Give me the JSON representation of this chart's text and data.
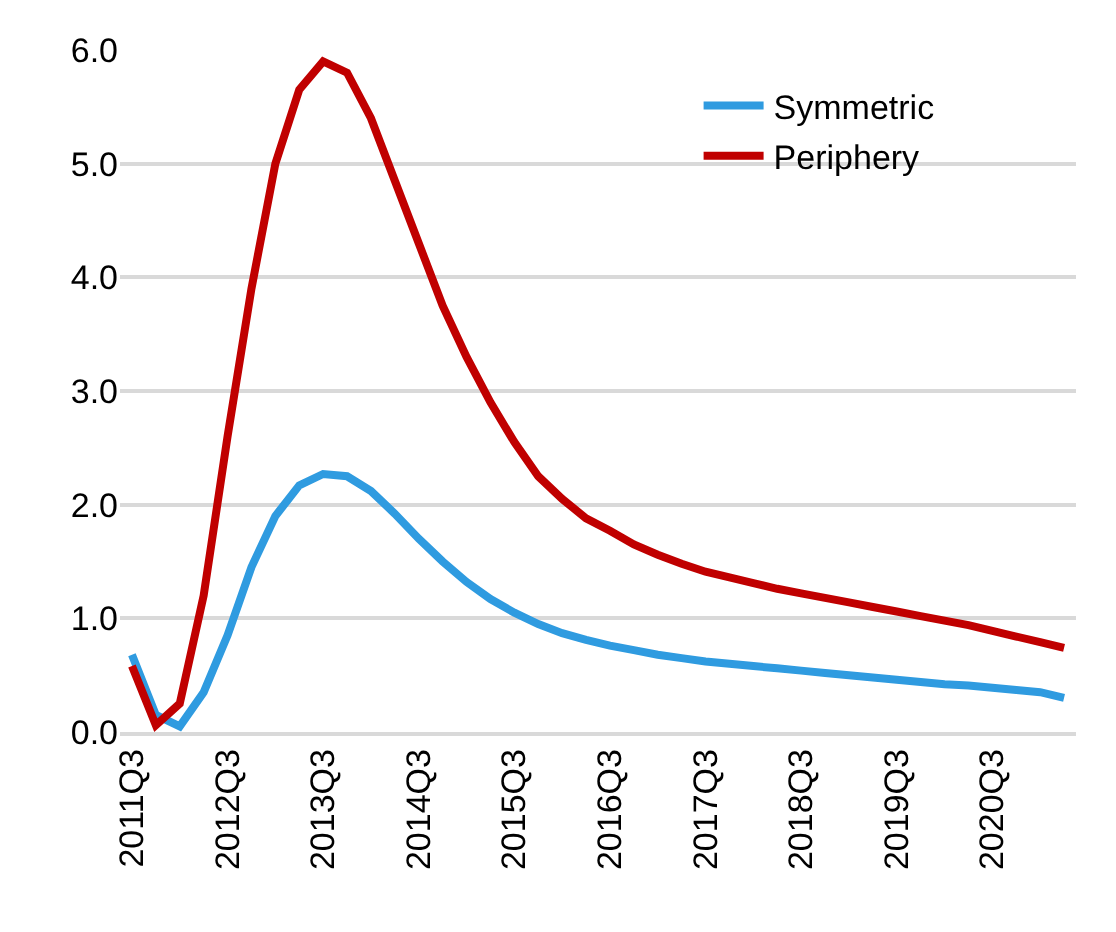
{
  "chart_data": {
    "type": "line",
    "categories": [
      "2011Q3",
      null,
      null,
      null,
      "2012Q3",
      null,
      null,
      null,
      "2013Q3",
      null,
      null,
      null,
      "2014Q3",
      null,
      null,
      null,
      "2015Q3",
      null,
      null,
      null,
      "2016Q3",
      null,
      null,
      null,
      "2017Q3",
      null,
      null,
      null,
      "2018Q3",
      null,
      null,
      null,
      "2019Q3",
      null,
      null,
      null,
      "2020Q3",
      null,
      null,
      null
    ],
    "series": [
      {
        "name": "Symmetric",
        "color": "#2f9be0",
        "values": [
          0.68,
          0.15,
          0.05,
          0.35,
          0.85,
          1.45,
          1.9,
          2.17,
          2.27,
          2.25,
          2.12,
          1.92,
          1.7,
          1.5,
          1.32,
          1.17,
          1.05,
          0.95,
          0.87,
          0.81,
          0.76,
          0.72,
          0.68,
          0.65,
          0.62,
          0.6,
          0.58,
          0.56,
          0.54,
          0.52,
          0.5,
          0.48,
          0.46,
          0.44,
          0.42,
          0.41,
          0.39,
          0.37,
          0.35,
          0.3
        ]
      },
      {
        "name": "Periphery",
        "color": "#c00000",
        "values": [
          0.58,
          0.06,
          0.25,
          1.2,
          2.6,
          3.9,
          5.0,
          5.65,
          5.9,
          5.8,
          5.4,
          4.85,
          4.3,
          3.75,
          3.3,
          2.9,
          2.55,
          2.25,
          2.05,
          1.88,
          1.77,
          1.65,
          1.56,
          1.48,
          1.41,
          1.36,
          1.31,
          1.26,
          1.22,
          1.18,
          1.14,
          1.1,
          1.06,
          1.02,
          0.98,
          0.94,
          0.89,
          0.84,
          0.79,
          0.74
        ]
      }
    ],
    "ylim": [
      0,
      6
    ],
    "yticks": [
      {
        "value": 0,
        "label": "0.0"
      },
      {
        "value": 1,
        "label": "1.0"
      },
      {
        "value": 2,
        "label": "2.0"
      },
      {
        "value": 3,
        "label": "3.0"
      },
      {
        "value": 4,
        "label": "4.0"
      },
      {
        "value": 5,
        "label": "5.0"
      },
      {
        "value": 6,
        "label": "6.0"
      }
    ],
    "grid": "y",
    "legend": "top right",
    "marker": "none",
    "line_style": "solid"
  }
}
